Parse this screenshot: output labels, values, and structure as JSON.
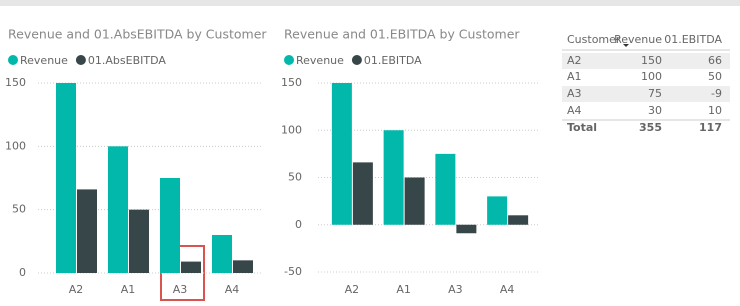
{
  "chart_data": [
    {
      "type": "bar",
      "title": "Revenue and 01.AbsEBITDA by Customer",
      "categories": [
        "A2",
        "A1",
        "A3",
        "A4"
      ],
      "series": [
        {
          "name": "Revenue",
          "color": "#01B8AA",
          "values": [
            150,
            100,
            75,
            30
          ]
        },
        {
          "name": "01.AbsEBITDA",
          "color": "#374649",
          "values": [
            66,
            50,
            9,
            10
          ]
        }
      ],
      "ylim": [
        0,
        150
      ],
      "yticks": [
        0,
        50,
        100,
        150
      ],
      "grid": true
    },
    {
      "type": "bar",
      "title": "Revenue and 01.EBITDA by Customer",
      "categories": [
        "A2",
        "A1",
        "A3",
        "A4"
      ],
      "series": [
        {
          "name": "Revenue",
          "color": "#01B8AA",
          "values": [
            150,
            100,
            75,
            30
          ]
        },
        {
          "name": "01.EBITDA",
          "color": "#374649",
          "values": [
            66,
            50,
            -9,
            10
          ]
        }
      ],
      "ylim": [
        -50,
        150
      ],
      "yticks": [
        -50,
        0,
        50,
        100,
        150
      ],
      "grid": true
    }
  ],
  "table": {
    "columns": [
      "Customer",
      "Revenue",
      "01.EBITDA"
    ],
    "rows": [
      [
        "A2",
        150,
        66
      ],
      [
        "A1",
        100,
        50
      ],
      [
        "A3",
        75,
        -9
      ],
      [
        "A4",
        30,
        10
      ]
    ],
    "total": [
      "Total",
      355,
      117
    ]
  }
}
